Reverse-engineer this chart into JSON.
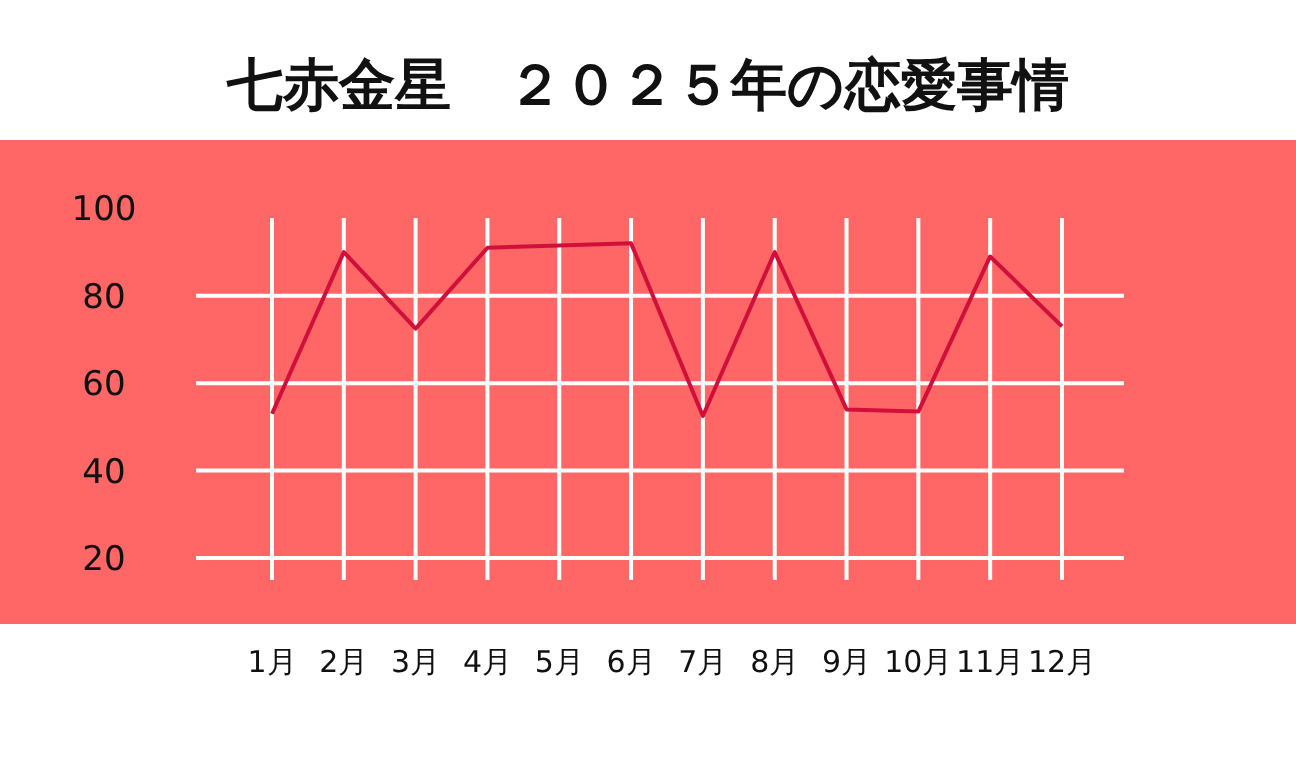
{
  "chart_data": {
    "type": "line",
    "title": "七赤金星　２０２５年の恋愛事情",
    "categories": [
      "1月",
      "2月",
      "3月",
      "4月",
      "5月",
      "6月",
      "7月",
      "8月",
      "9月",
      "10月",
      "11月",
      "12月"
    ],
    "series": [
      {
        "color": "#d0103a",
        "values": [
          53,
          90,
          72.5,
          91,
          91.5,
          92,
          52.5,
          90,
          54,
          53.5,
          89,
          73
        ]
      }
    ],
    "ylim": [
      20,
      100
    ],
    "yticks": [
      20,
      40,
      60,
      80,
      100
    ],
    "grid": true,
    "marker": "none",
    "line_style": "solid"
  }
}
